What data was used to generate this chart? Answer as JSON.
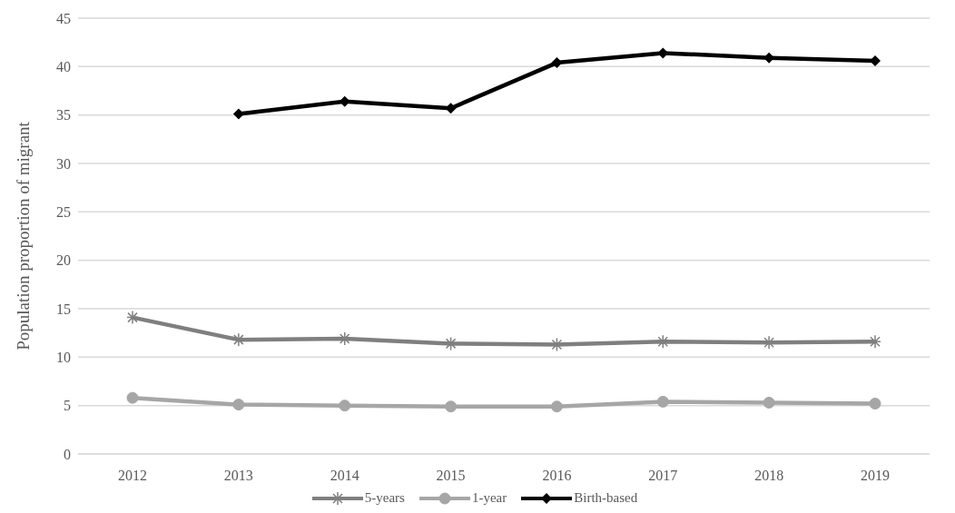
{
  "chart_data": {
    "type": "line",
    "ylabel": "Population proportion of migrant",
    "categories": [
      "2012",
      "2013",
      "2014",
      "2015",
      "2016",
      "2017",
      "2018",
      "2019"
    ],
    "series": [
      {
        "name": "5-years",
        "color": "#7f7f7f",
        "marker": "cross",
        "values": [
          14.1,
          11.8,
          11.9,
          11.4,
          11.3,
          11.6,
          11.5,
          11.6
        ]
      },
      {
        "name": "1-year",
        "color": "#a6a6a6",
        "marker": "circle",
        "values": [
          5.8,
          5.1,
          5.0,
          4.9,
          4.9,
          5.4,
          5.3,
          5.2
        ]
      },
      {
        "name": "Birth-based",
        "color": "#000000",
        "marker": "diamond",
        "values": [
          null,
          35.1,
          36.4,
          35.7,
          40.4,
          41.4,
          40.9,
          40.6
        ]
      }
    ],
    "ylim": [
      0,
      45
    ],
    "yticks": [
      0,
      5,
      10,
      15,
      20,
      25,
      30,
      35,
      40,
      45
    ],
    "grid": "y",
    "legend": "bottom"
  }
}
